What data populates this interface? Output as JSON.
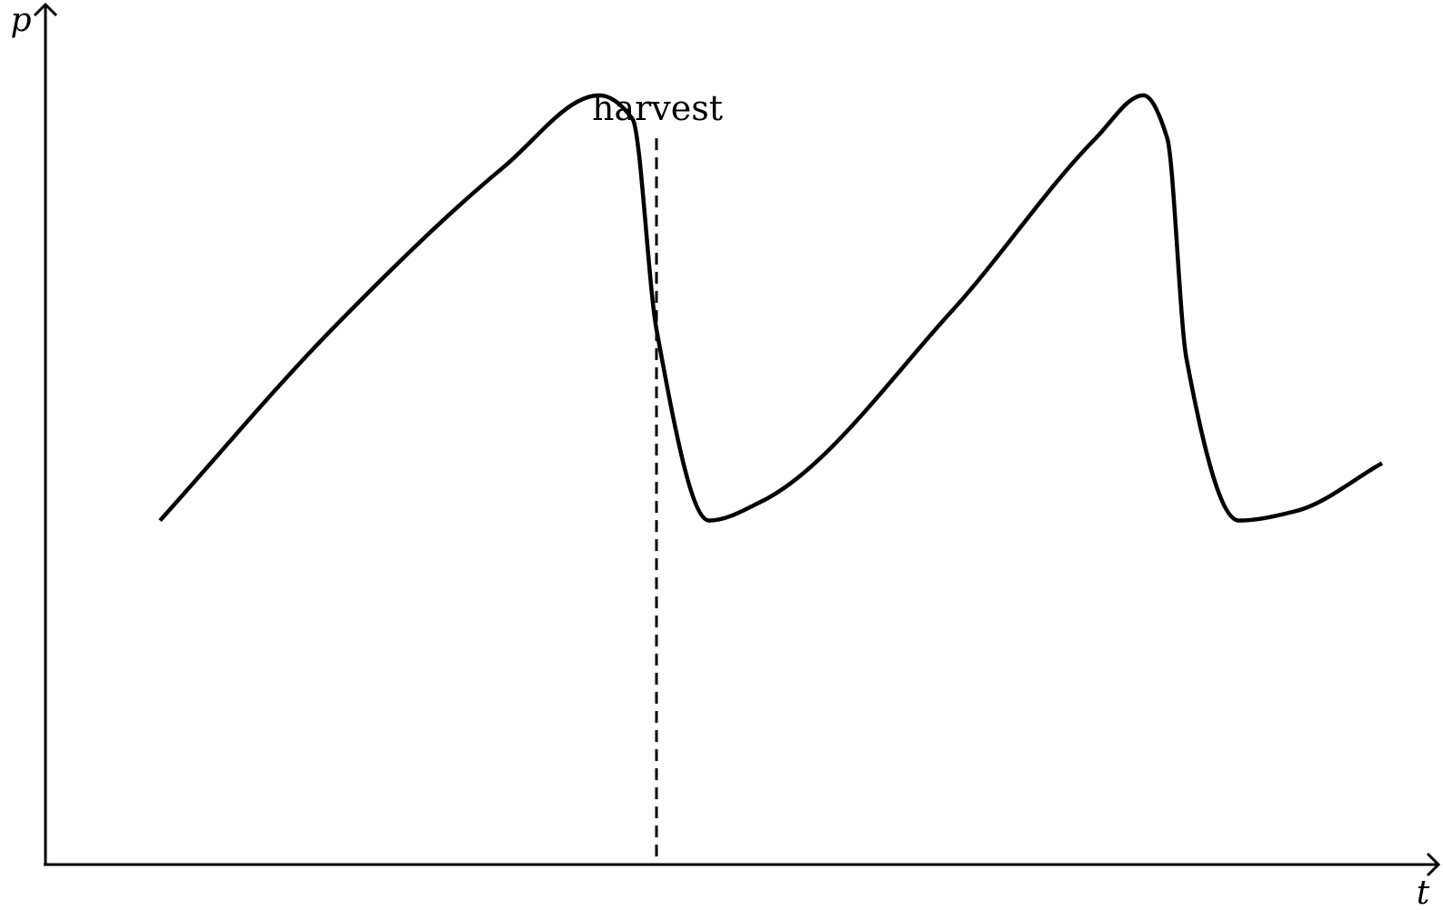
{
  "chart_data": {
    "type": "line",
    "title": "",
    "xlabel": "t",
    "ylabel": "p",
    "xlim": [
      0,
      14
    ],
    "ylim": [
      0,
      9
    ],
    "grid": false,
    "axis_ticks": false,
    "series": [
      {
        "x": [
          1.2,
          3.0,
          4.8,
          5.8,
          6.15,
          6.4,
          6.95,
          7.5,
          9.5,
          11.0,
          11.5,
          11.75,
          11.95,
          12.5,
          13.1,
          14.0
        ],
        "y": [
          3.6,
          5.6,
          7.3,
          8.05,
          7.8,
          5.6,
          3.6,
          3.8,
          5.8,
          7.6,
          8.05,
          7.6,
          5.3,
          3.6,
          3.7,
          4.2
        ],
        "color": "#000000",
        "style": "solid"
      }
    ],
    "annotations": [
      {
        "text": "harvest",
        "x": 6.4,
        "line": "vertical-dashed"
      }
    ],
    "marker_line": {
      "x": 6.4,
      "y_top": 7.6
    }
  }
}
